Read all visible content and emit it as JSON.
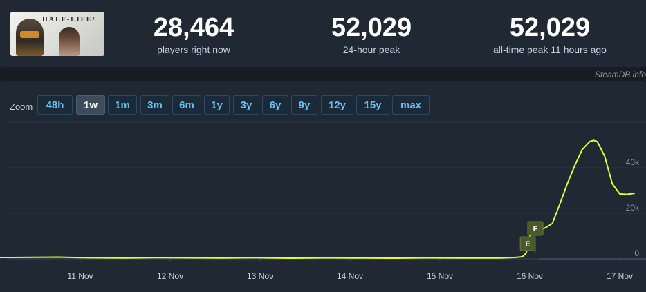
{
  "game": {
    "logo_icon": "half-life-2-capsule",
    "logo_text": "HALF-LIFE²"
  },
  "stats": [
    {
      "value": "28,464",
      "label": "players right now"
    },
    {
      "value": "52,029",
      "label": "24-hour peak"
    },
    {
      "value": "52,029",
      "label": "all-time peak 11 hours ago"
    }
  ],
  "credit": "SteamDB.info",
  "zoom": {
    "label": "Zoom",
    "selected": "1w",
    "options": [
      "48h",
      "1w",
      "1m",
      "3m",
      "6m",
      "1y",
      "3y",
      "6y",
      "9y",
      "12y",
      "15y",
      "max"
    ]
  },
  "colors": {
    "line": "#e3ff2b",
    "accent": "#66c0f4",
    "flag": "#4c5a2a"
  },
  "chart_data": {
    "type": "line",
    "title": "",
    "xlabel": "",
    "ylabel": "",
    "x_ticks": [
      "11 Nov",
      "12 Nov",
      "13 Nov",
      "14 Nov",
      "15 Nov",
      "16 Nov",
      "17 Nov"
    ],
    "y_ticks": [
      "0",
      "20k",
      "40k"
    ],
    "ylim": [
      0,
      60000
    ],
    "grid": true,
    "series": [
      {
        "values": [
          {
            "t": "2024-11-10T06:00",
            "y": 600
          },
          {
            "t": "2024-11-10T12:00",
            "y": 700
          },
          {
            "t": "2024-11-10T18:00",
            "y": 750
          },
          {
            "t": "2024-11-11T00:00",
            "y": 500
          },
          {
            "t": "2024-11-11T12:00",
            "y": 400
          },
          {
            "t": "2024-11-11T20:00",
            "y": 550
          },
          {
            "t": "2024-11-12T06:00",
            "y": 450
          },
          {
            "t": "2024-11-12T14:00",
            "y": 350
          },
          {
            "t": "2024-11-12T22:00",
            "y": 500
          },
          {
            "t": "2024-11-13T08:00",
            "y": 300
          },
          {
            "t": "2024-11-13T18:00",
            "y": 450
          },
          {
            "t": "2024-11-14T04:00",
            "y": 350
          },
          {
            "t": "2024-11-14T12:00",
            "y": 300
          },
          {
            "t": "2024-11-14T20:00",
            "y": 450
          },
          {
            "t": "2024-11-15T06:00",
            "y": 400
          },
          {
            "t": "2024-11-15T16:00",
            "y": 350
          },
          {
            "t": "2024-11-15T20:00",
            "y": 600
          },
          {
            "t": "2024-11-15T22:00",
            "y": 900
          },
          {
            "t": "2024-11-15T23:00",
            "y": 2500
          },
          {
            "t": "2024-11-16T00:00",
            "y": 10000
          },
          {
            "t": "2024-11-16T02:00",
            "y": 12000
          },
          {
            "t": "2024-11-16T04:00",
            "y": 13500
          },
          {
            "t": "2024-11-16T06:00",
            "y": 15500
          },
          {
            "t": "2024-11-16T08:00",
            "y": 24000
          },
          {
            "t": "2024-11-16T10:00",
            "y": 33000
          },
          {
            "t": "2024-11-16T12:00",
            "y": 41000
          },
          {
            "t": "2024-11-16T14:00",
            "y": 48000
          },
          {
            "t": "2024-11-16T16:00",
            "y": 51500
          },
          {
            "t": "2024-11-16T17:00",
            "y": 52029
          },
          {
            "t": "2024-11-16T18:00",
            "y": 51500
          },
          {
            "t": "2024-11-16T20:00",
            "y": 45000
          },
          {
            "t": "2024-11-16T22:00",
            "y": 33000
          },
          {
            "t": "2024-11-17T00:00",
            "y": 28500
          },
          {
            "t": "2024-11-17T02:00",
            "y": 28300
          },
          {
            "t": "2024-11-17T04:00",
            "y": 28800
          }
        ]
      }
    ],
    "annotations": [
      {
        "label": "E",
        "t": "2024-11-15T22:00"
      },
      {
        "label": "F",
        "t": "2024-11-16T00:00"
      }
    ]
  }
}
